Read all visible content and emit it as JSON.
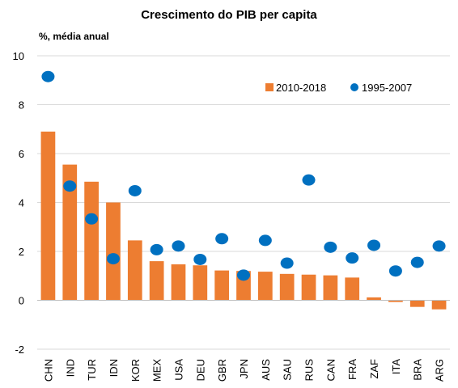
{
  "chart_data": {
    "type": "bar",
    "title": "Crescimento do PIB per capita",
    "ylabel": "%, média anual",
    "xlabel": "",
    "ylim": [
      -2,
      10
    ],
    "yticks": [
      "-2",
      "0",
      "2",
      "4",
      "6",
      "8",
      "10"
    ],
    "grid": true,
    "legend_position": "top-right",
    "categories": [
      "CHN",
      "IND",
      "TUR",
      "IDN",
      "KOR",
      "MEX",
      "USA",
      "DEU",
      "GBR",
      "JPN",
      "AUS",
      "SAU",
      "RUS",
      "CAN",
      "FRA",
      "ZAF",
      "ITA",
      "BRA",
      "ARG"
    ],
    "series": [
      {
        "name": "2010-2018",
        "mark": "bar",
        "color": "#ED7D31",
        "values": [
          6.9,
          5.55,
          4.85,
          4.0,
          2.45,
          1.6,
          1.47,
          1.43,
          1.22,
          1.2,
          1.17,
          1.08,
          1.05,
          1.02,
          0.93,
          0.12,
          -0.07,
          -0.27,
          -0.37
        ]
      },
      {
        "name": "1995-2007",
        "mark": "dot",
        "color": "#0070C0",
        "values": [
          9.15,
          4.67,
          3.33,
          1.7,
          4.48,
          2.07,
          2.22,
          1.67,
          2.52,
          1.03,
          2.45,
          1.52,
          4.92,
          2.17,
          1.73,
          2.25,
          1.2,
          1.55,
          2.22
        ]
      }
    ]
  }
}
